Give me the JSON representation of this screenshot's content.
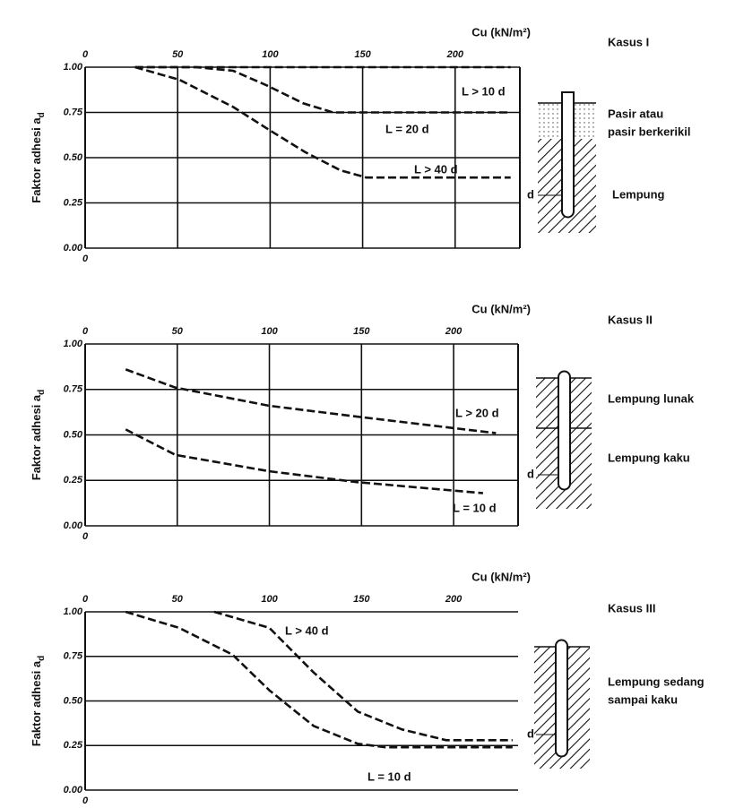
{
  "chart_data": [
    {
      "type": "line",
      "title": "Kasus I",
      "x_label": "Cu (kN/m²)",
      "y_label": [
        "Faktor adhesi a",
        "d"
      ],
      "xlim": [
        0,
        235
      ],
      "xticks": [
        0,
        50,
        100,
        150,
        200
      ],
      "ylim": [
        0,
        1
      ],
      "yticks": [
        {
          "value": 0,
          "label": "0.00"
        },
        0.25,
        {
          "value": 0.5,
          "label": "0.50"
        },
        0.75,
        {
          "value": 1,
          "label": "1.00"
        }
      ],
      "ygrid": true,
      "xgrid": true,
      "series": [
        {
          "name": "L > 10 d",
          "color": "#111111",
          "x": [
            27,
            230
          ],
          "values": [
            1,
            1
          ]
        },
        {
          "name": "L = 20 d",
          "color": "#111111",
          "x": [
            27,
            60,
            80,
            98,
            118,
            134,
            160,
            200,
            230
          ],
          "values": [
            1,
            1,
            0.98,
            0.9,
            0.8,
            0.75,
            0.75,
            0.75,
            0.75
          ]
        },
        {
          "name": "L > 40 d",
          "color": "#111111",
          "x": [
            27,
            51,
            80,
            100,
            119,
            138,
            152,
            175,
            200,
            230
          ],
          "values": [
            1,
            0.93,
            0.78,
            0.65,
            0.53,
            0.43,
            0.39,
            0.39,
            0.39,
            0.39
          ]
        }
      ],
      "soil_labels": [
        "Pasir atau",
        "pasir berkerikil",
        "Lempung"
      ],
      "diameter_label": "d"
    },
    {
      "type": "line",
      "title": "Kasus II",
      "x_label": "Cu (kN/m²)",
      "y_label": [
        "Faktor adhesi a",
        "d"
      ],
      "xlim": [
        0,
        235
      ],
      "xticks": [
        0,
        50,
        100,
        150,
        200
      ],
      "ylim": [
        0,
        1
      ],
      "yticks": [
        {
          "value": 0,
          "label": "0.00"
        },
        0.25,
        {
          "value": 0.5,
          "label": "0.50"
        },
        0.75,
        {
          "value": 1,
          "label": "1.00"
        }
      ],
      "ygrid": true,
      "xgrid": true,
      "series": [
        {
          "name": "L > 20 d",
          "color": "#111111",
          "x": [
            22,
            49,
            100,
            148,
            223
          ],
          "values": [
            0.86,
            0.76,
            0.66,
            0.6,
            0.51
          ]
        },
        {
          "name": "L = 10 d",
          "color": "#111111",
          "x": [
            22,
            49,
            100,
            148,
            216
          ],
          "values": [
            0.53,
            0.39,
            0.3,
            0.24,
            0.18
          ]
        }
      ],
      "soil_labels": [
        "Lempung lunak",
        "Lempung kaku"
      ],
      "diameter_label": "d"
    },
    {
      "type": "line",
      "title": "Kasus III",
      "x_label": "Cu (kN/m²)",
      "y_label": [
        "Faktor adhesi a",
        "d"
      ],
      "xlim": [
        0,
        235
      ],
      "xticks": [
        0,
        50,
        100,
        150,
        200
      ],
      "ylim": [
        0,
        1
      ],
      "yticks": [
        {
          "value": 0,
          "label": "0.00"
        },
        0.25,
        {
          "value": 0.5,
          "label": "0.50"
        },
        0.75,
        {
          "value": 1,
          "label": "1.00"
        }
      ],
      "ygrid": true,
      "xgrid": false,
      "series": [
        {
          "name": "L > 40 d",
          "color": "#111111",
          "x": [
            70,
            100,
            124,
            148,
            172,
            196,
            232
          ],
          "values": [
            1,
            0.91,
            0.66,
            0.44,
            0.34,
            0.28,
            0.28
          ]
        },
        {
          "name": "L = 10 d",
          "color": "#111111",
          "x": [
            22,
            51,
            80,
            100,
            124,
            148,
            163,
            232
          ],
          "values": [
            1,
            0.91,
            0.76,
            0.56,
            0.36,
            0.26,
            0.24,
            0.24
          ]
        }
      ],
      "soil_labels": [
        "Lempung sedang",
        "sampai kaku"
      ],
      "diameter_label": "d"
    }
  ]
}
